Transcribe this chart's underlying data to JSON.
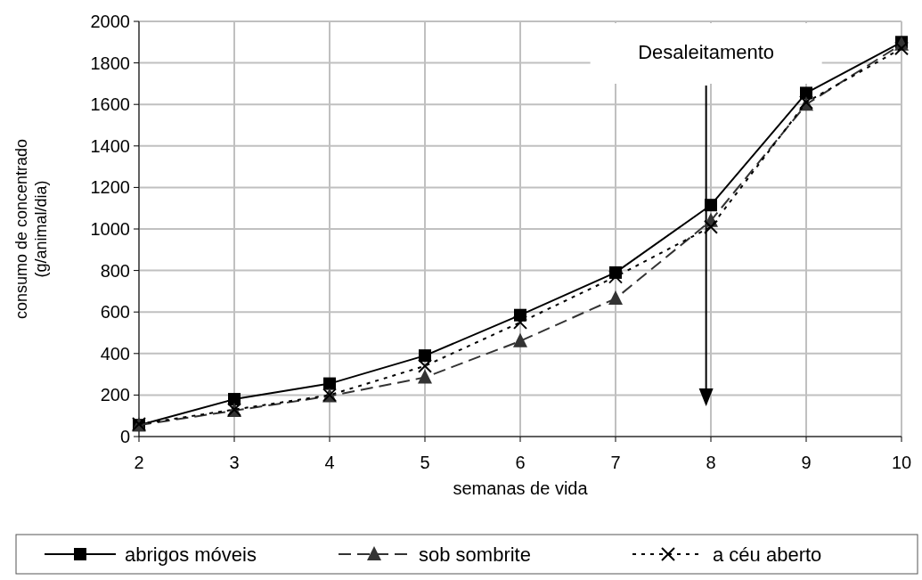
{
  "chart_data": {
    "type": "line",
    "xlabel": "semanas de vida",
    "ylabel": "consumo de concentrado\n(g/animal/dia)",
    "x": [
      2,
      3,
      4,
      5,
      6,
      7,
      8,
      9,
      10
    ],
    "xlim": [
      2,
      10
    ],
    "xticks": [
      2,
      3,
      4,
      5,
      6,
      7,
      8,
      9,
      10
    ],
    "ylim": [
      0,
      2000
    ],
    "yticks": [
      0,
      200,
      400,
      600,
      800,
      1000,
      1200,
      1400,
      1600,
      1800,
      2000
    ],
    "grid": true,
    "legend": "bottom",
    "series": [
      {
        "name": "abrigos móveis",
        "color": "#000000",
        "marker": "square",
        "line_style": "solid",
        "values": [
          55,
          180,
          255,
          390,
          585,
          790,
          1115,
          1655,
          1900
        ]
      },
      {
        "name": "sob sombrite",
        "color": "#333333",
        "marker": "triangle",
        "line_style": "dashed",
        "values": [
          55,
          125,
          195,
          285,
          460,
          665,
          1040,
          1600,
          1890
        ]
      },
      {
        "name": "a céu aberto",
        "color": "#000000",
        "marker": "cross",
        "line_style": "dotted",
        "values": [
          60,
          130,
          200,
          340,
          550,
          770,
          1010,
          1610,
          1870
        ]
      }
    ],
    "ref_lines": [
      {
        "axis": "x",
        "value": 7.95,
        "label": "Desaleitamento",
        "color": "#000000"
      }
    ]
  }
}
